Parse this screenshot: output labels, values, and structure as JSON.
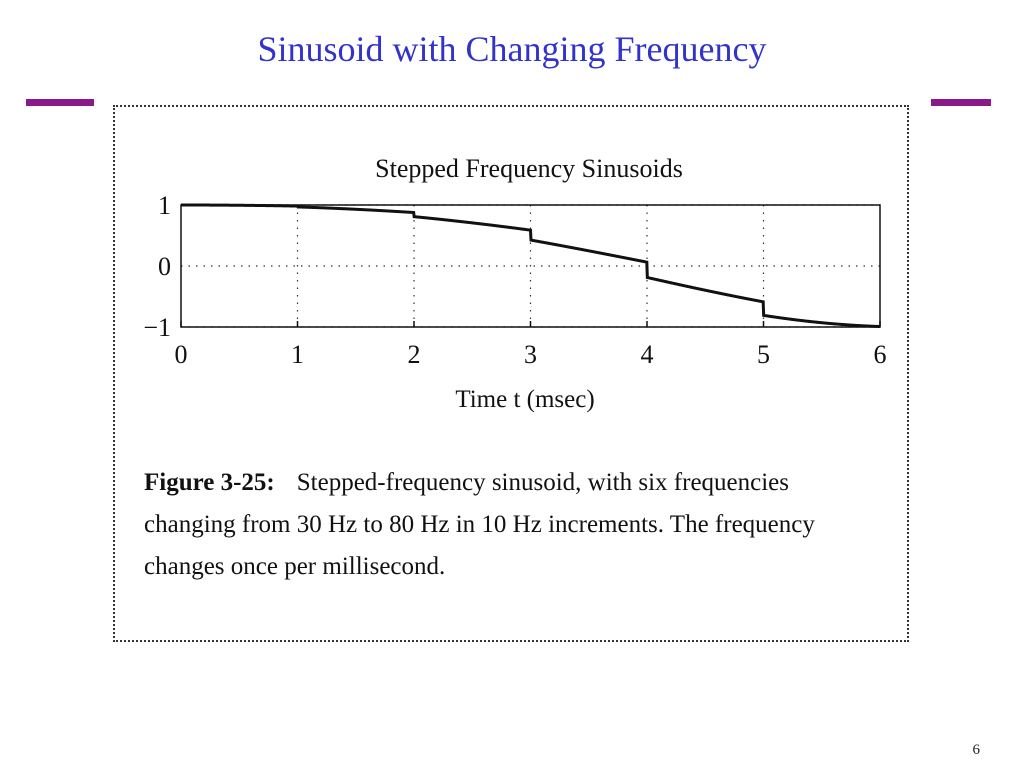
{
  "slide": {
    "title": "Sinusoid with Changing Frequency",
    "page_number": "6",
    "accent_color": "#8a1a8a",
    "title_color": "#3333cc"
  },
  "caption": {
    "label": "Figure 3-25:",
    "text": "Stepped-frequency sinusoid, with six frequencies changing from 30 Hz to 80 Hz in 10 Hz increments. The frequency changes once per millisecond."
  },
  "chart_data": {
    "type": "line",
    "title": "Stepped Frequency Sinusoids",
    "xlabel": "Time  t  (msec)",
    "ylabel": "",
    "xlim": [
      0,
      6
    ],
    "ylim": [
      -1,
      1
    ],
    "x_ticks": [
      "0",
      "1",
      "2",
      "3",
      "4",
      "5",
      "6"
    ],
    "y_ticks": [
      "1",
      "0",
      "−1"
    ],
    "grid": true,
    "series": [
      {
        "segments": [
          {
            "t_start": 0,
            "t_end": 1,
            "frequency_hz": 30
          },
          {
            "t_start": 1,
            "t_end": 2,
            "frequency_hz": 40
          },
          {
            "t_start": 2,
            "t_end": 3,
            "frequency_hz": 50
          },
          {
            "t_start": 3,
            "t_end": 4,
            "frequency_hz": 60
          },
          {
            "t_start": 4,
            "t_end": 5,
            "frequency_hz": 70
          },
          {
            "t_start": 5,
            "t_end": 6,
            "frequency_hz": 80
          }
        ]
      }
    ]
  }
}
